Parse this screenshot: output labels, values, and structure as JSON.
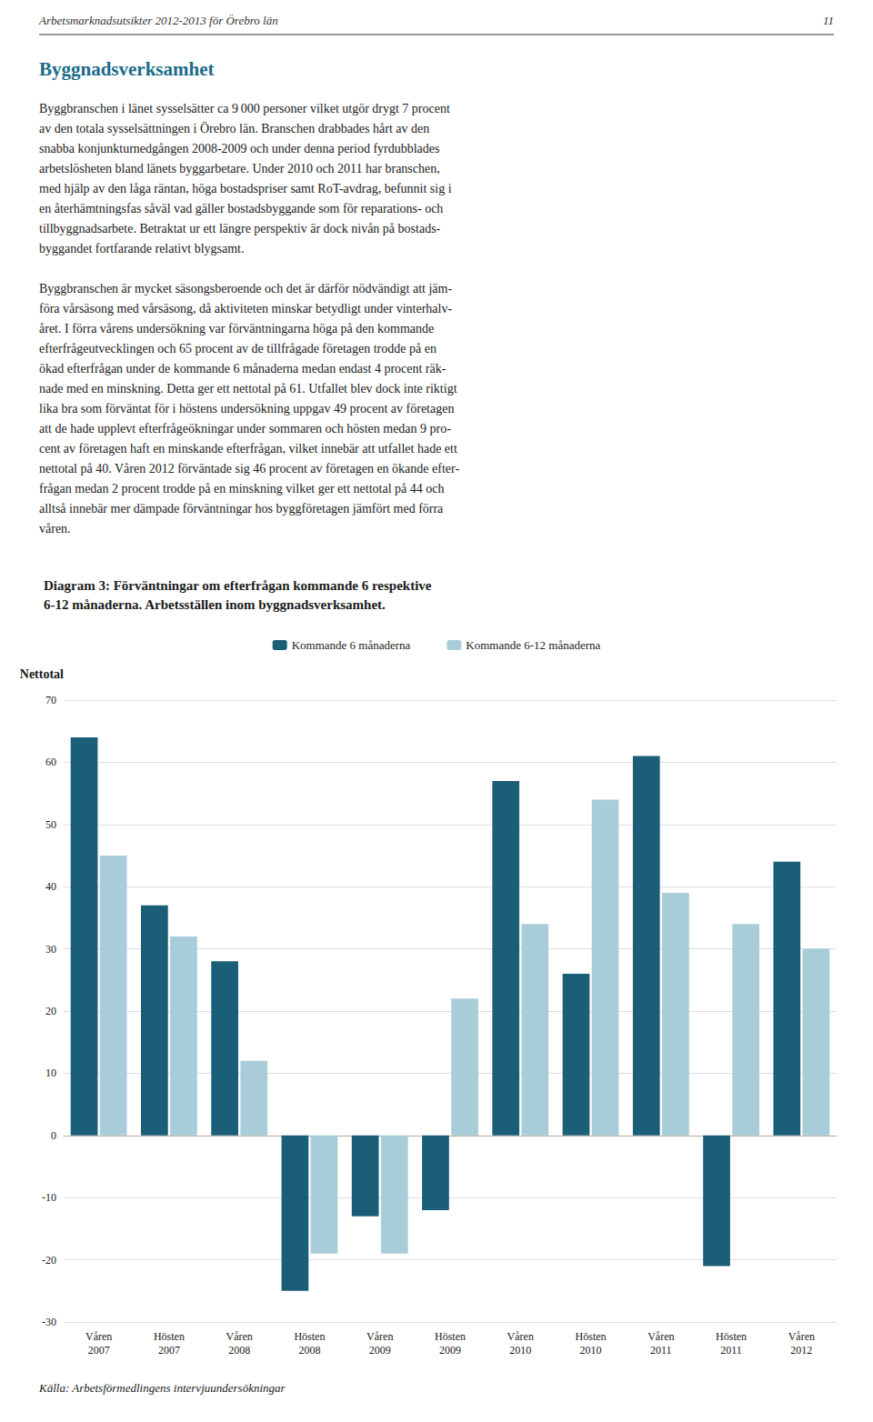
{
  "chart_data": {
    "type": "bar",
    "title": "Diagram 3: Förväntningar om efterfrågan kommande 6 respektive\n6-12 månaderna. Arbetsställen inom byggnadsverksamhet.",
    "ylabel": "Nettotal",
    "categories": [
      "Våren\n2007",
      "Hösten\n2007",
      "Våren\n2008",
      "Hösten\n2008",
      "Våren\n2009",
      "Hösten\n2009",
      "Våren\n2010",
      "Hösten\n2010",
      "Våren\n2011",
      "Hösten\n2011",
      "Våren\n2012"
    ],
    "series": [
      {
        "name": "Kommande 6 månaderna",
        "color": "#1b5e78",
        "values": [
          64,
          37,
          28,
          -25,
          -13,
          -12,
          57,
          26,
          61,
          -21,
          44
        ]
      },
      {
        "name": "Kommande 6-12 månaderna",
        "color": "#a8cdd9",
        "values": [
          45,
          32,
          12,
          -19,
          -19,
          22,
          34,
          54,
          39,
          34,
          30
        ]
      }
    ],
    "ylim": [
      -30,
      70
    ],
    "yticks": [
      -30,
      -20,
      -10,
      0,
      10,
      20,
      30,
      40,
      50,
      60,
      70
    ],
    "grid": true,
    "legend": "top",
    "annotations": [
      "Arbetsmarknadsutsikter 2012-2013 för Örebro län",
      "11",
      "Byggnadsverksamhet",
      "Byggbranschen i länet sysselsätter ca 9 000 personer vilket utgör drygt 7 procent\nav den totala sysselsättningen i Örebro län. Branschen drabbades hårt av den\nsnabba konjunkturnedgången 2008-2009 och under denna period fyrdubblades\narbetslösheten bland länets byggarbetare. Under 2010 och 2011 har branschen,\nmed hjälp av den låga räntan, höga bostadspriser samt RoT-avdrag, befunnit sig i\nen återhämtningsfas såväl vad gäller bostadsbyggande som för reparations- och\ntillbyggnadsarbete. Betraktat ur ett längre perspektiv är dock nivån på bostads-\nbyggandet fortfarande relativt blygsamt.",
      "Byggbranschen är mycket säsongsberoende och det är därför nödvändigt att jäm-\nföra vårsäsong med vårsäsong, då aktiviteten minskar betydligt under vinterhalv-\nåret. I förra vårens undersökning var förväntningarna höga på den kommande\nefterfrågeutvecklingen och 65 procent av de tillfrågade företagen trodde på en\nökad efterfrågan under de kommande 6 månaderna medan endast 4 procent räk-\nnade med en minskning. Detta ger ett nettotal på 61. Utfallet blev dock inte riktigt\nlika bra som förväntat för i höstens undersökning uppgav 49 procent av företagen\natt de hade upplevt efterfrågeökningar under sommaren och hösten medan 9 pro-\ncent av företagen haft en minskande efterfrågan, vilket innebär att utfallet hade ett\nnettotal på 40. Våren 2012 förväntade sig 46 procent av företagen en ökande efter-\nfrågan medan 2 procent trodde på en minskning vilket ger ett nettotal på 44 och\nalltså innebär mer dämpade förväntningar hos byggföretagen jämfört med förra\nvåren.",
      "Källa: Arbetsförmedlingens intervjuundersökningar"
    ]
  }
}
